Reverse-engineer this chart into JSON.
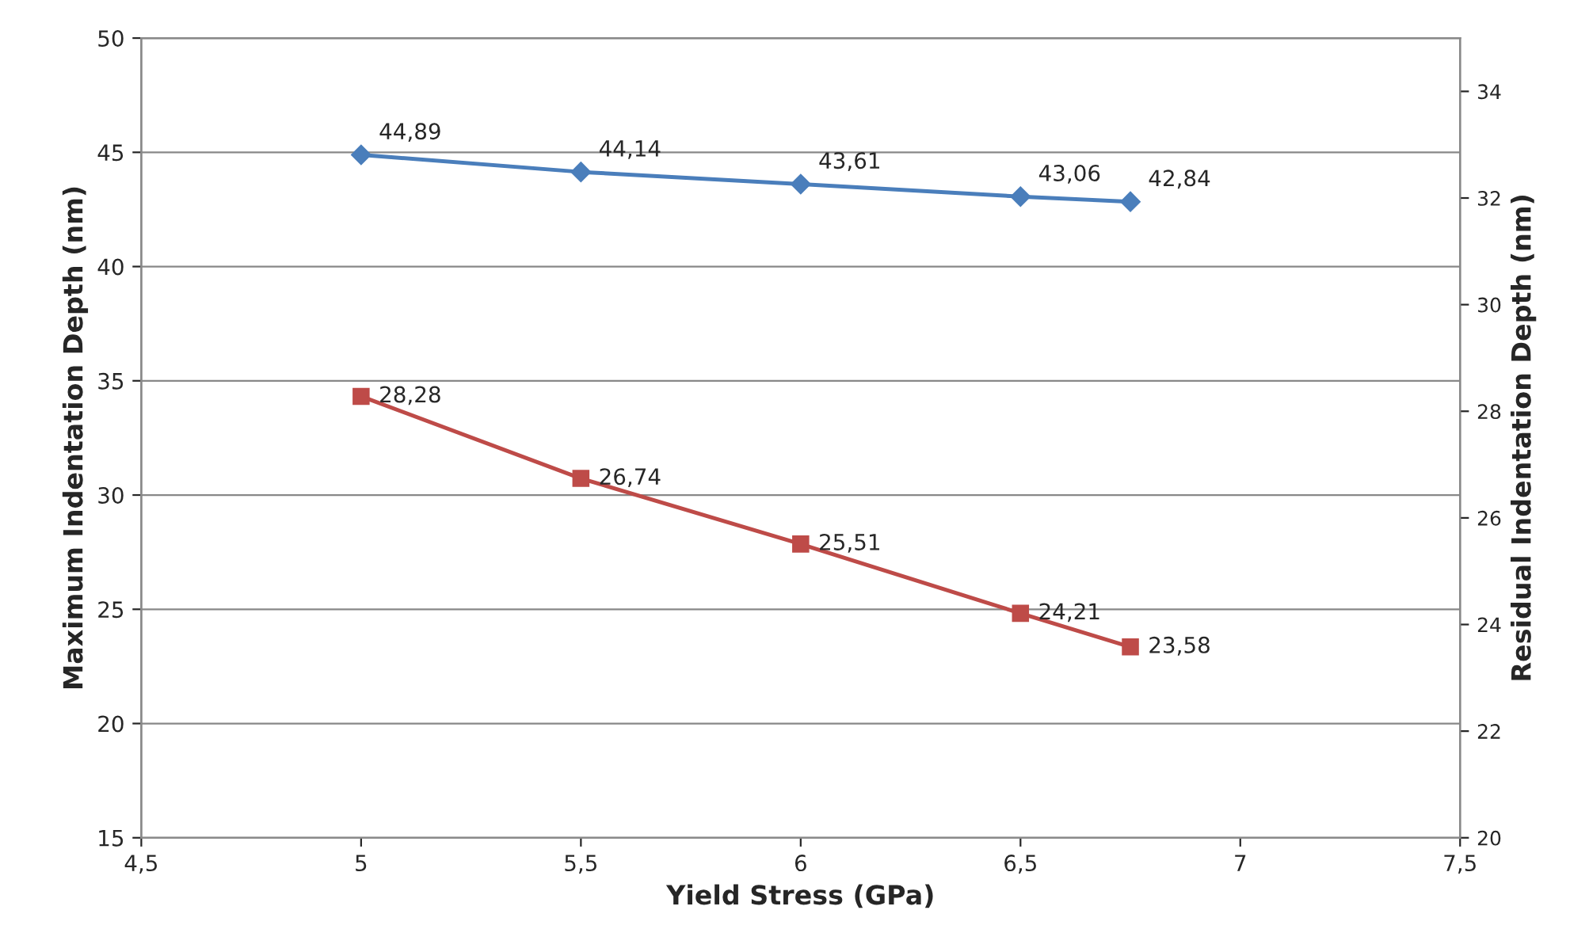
{
  "chart_data": {
    "type": "line",
    "xlabel": "Yield Stress (GPa)",
    "ylabel": "Maximum Indentation Depth (nm)",
    "y2label": "Residual Indentation Depth (nm)",
    "xlim": [
      4.5,
      7.5
    ],
    "xticks": [
      {
        "value": 4.5,
        "label": "4,5"
      },
      5,
      {
        "value": 5.5,
        "label": "5,5"
      },
      6,
      {
        "value": 6.5,
        "label": "6,5"
      },
      7,
      {
        "value": 7.5,
        "label": "7,5"
      }
    ],
    "ylim": [
      15,
      50
    ],
    "yticks": [
      15,
      20,
      25,
      30,
      35,
      40,
      45,
      50
    ],
    "y2lim": [
      20,
      35
    ],
    "y2ticks": [
      20,
      22,
      24,
      26,
      28,
      30,
      32,
      34
    ],
    "grid": "y",
    "series": [
      {
        "color": "#4a7ebb",
        "marker": "diamond",
        "x": [
          5,
          5.5,
          6,
          6.5,
          6.75
        ],
        "values": [
          44.89,
          44.14,
          43.61,
          43.06,
          42.84
        ],
        "value_labels": [
          "44,89",
          "44,14",
          "43,61",
          "43,06",
          "42,84"
        ]
      },
      {
        "color": "#be4b48",
        "marker": "square",
        "axis": "y2",
        "x": [
          5,
          5.5,
          6,
          6.5,
          6.75
        ],
        "values": [
          28.28,
          26.74,
          25.51,
          24.21,
          23.58
        ],
        "value_labels": [
          "28,28",
          "26,74",
          "25,51",
          "24,21",
          "23,58"
        ]
      }
    ]
  }
}
